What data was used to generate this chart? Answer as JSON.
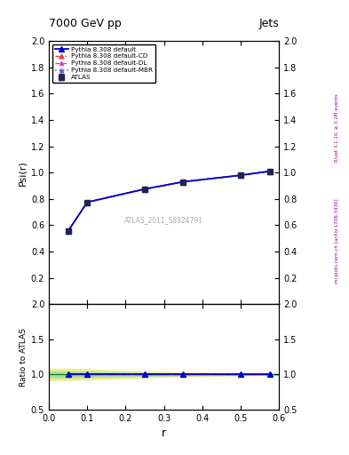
{
  "title_left": "7000 GeV pp",
  "title_right": "Jets",
  "ylabel_main": "Psi(r)",
  "ylabel_ratio": "Ratio to ATLAS",
  "xlabel": "r",
  "right_label_top": "Rivet 3.1.10, ≥ 3.2M events",
  "right_label_bottom": "mcplots.cern.ch [arXiv:1306.3436]",
  "watermark": "ATLAS_2011_S8924791",
  "x_data": [
    0.05,
    0.1,
    0.25,
    0.35,
    0.5,
    0.575
  ],
  "psi_data": [
    0.555,
    0.775,
    0.875,
    0.93,
    0.98,
    1.01
  ],
  "ratio_data": [
    1.0,
    1.0,
    1.0,
    1.0,
    1.0,
    1.0
  ],
  "band_x": [
    0.0,
    0.05,
    0.1,
    0.15,
    0.25,
    0.35,
    0.5,
    0.575,
    0.6
  ],
  "band_yellow_low": [
    0.92,
    0.92,
    0.93,
    0.94,
    0.96,
    0.975,
    0.988,
    0.993,
    0.995
  ],
  "band_yellow_high": [
    1.08,
    1.08,
    1.07,
    1.06,
    1.04,
    1.025,
    1.012,
    1.007,
    1.005
  ],
  "band_green_low": [
    0.96,
    0.96,
    0.965,
    0.97,
    0.98,
    0.988,
    0.994,
    0.997,
    0.998
  ],
  "band_green_high": [
    1.04,
    1.04,
    1.035,
    1.03,
    1.02,
    1.012,
    1.006,
    1.003,
    1.002
  ],
  "xlim": [
    0.0,
    0.6
  ],
  "ylim_main": [
    0.0,
    2.0
  ],
  "ylim_ratio": [
    0.5,
    2.0
  ],
  "yticks_main": [
    0.2,
    0.4,
    0.6,
    0.8,
    1.0,
    1.2,
    1.4,
    1.6,
    1.8,
    2.0
  ],
  "yticks_ratio": [
    0.5,
    1.0,
    1.5,
    2.0
  ],
  "xticks": [
    0.0,
    0.1,
    0.2,
    0.3,
    0.4,
    0.5,
    0.6
  ],
  "color_atlas": "#222255",
  "color_default": "#0000cc",
  "color_cd": "#dd4444",
  "color_dl": "#cc44cc",
  "color_mbr": "#6666cc",
  "color_band_yellow": "#eeee88",
  "color_band_green": "#aaddaa",
  "color_hline": "#008800",
  "legend_entries": [
    "ATLAS",
    "Pythia 8.308 default",
    "Pythia 8.308 default-CD",
    "Pythia 8.308 default-DL",
    "Pythia 8.308 default-MBR"
  ],
  "right_text_color": "#990099"
}
